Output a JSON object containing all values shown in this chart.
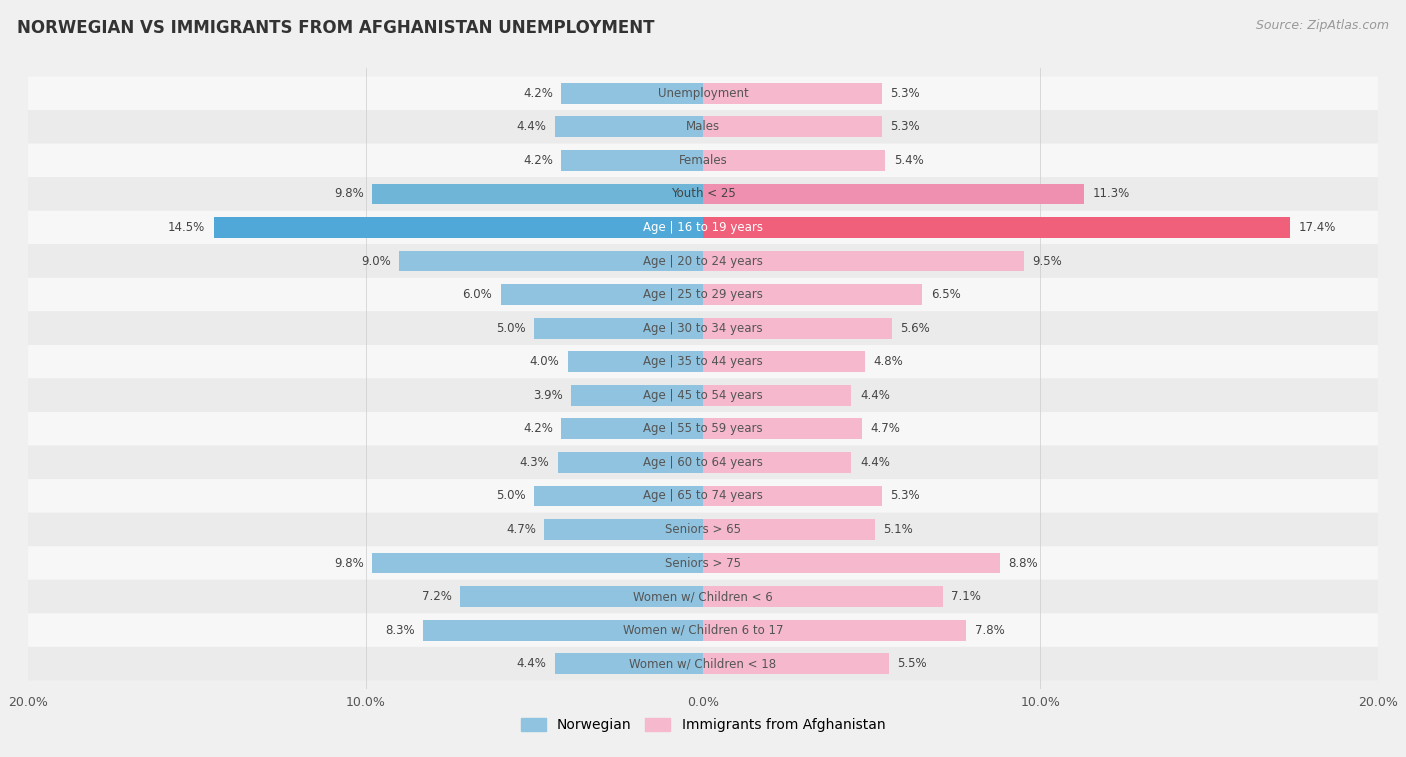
{
  "title": "NORWEGIAN VS IMMIGRANTS FROM AFGHANISTAN UNEMPLOYMENT",
  "source": "Source: ZipAtlas.com",
  "categories": [
    "Unemployment",
    "Males",
    "Females",
    "Youth < 25",
    "Age | 16 to 19 years",
    "Age | 20 to 24 years",
    "Age | 25 to 29 years",
    "Age | 30 to 34 years",
    "Age | 35 to 44 years",
    "Age | 45 to 54 years",
    "Age | 55 to 59 years",
    "Age | 60 to 64 years",
    "Age | 65 to 74 years",
    "Seniors > 65",
    "Seniors > 75",
    "Women w/ Children < 6",
    "Women w/ Children 6 to 17",
    "Women w/ Children < 18"
  ],
  "norwegian": [
    4.2,
    4.4,
    4.2,
    9.8,
    14.5,
    9.0,
    6.0,
    5.0,
    4.0,
    3.9,
    4.2,
    4.3,
    5.0,
    4.7,
    9.8,
    7.2,
    8.3,
    4.4
  ],
  "immigrants": [
    5.3,
    5.3,
    5.4,
    11.3,
    17.4,
    9.5,
    6.5,
    5.6,
    4.8,
    4.4,
    4.7,
    4.4,
    5.3,
    5.1,
    8.8,
    7.1,
    7.8,
    5.5
  ],
  "norwegian_color": "#8fc3e0",
  "norwegian_color_highlight": "#4fa8d8",
  "immigrant_color": "#f5b8cc",
  "immigrant_color_highlight": "#f0607a",
  "youth_highlight_nor": "#6eb5d8",
  "youth_highlight_imm": "#f090b0",
  "row_bg_light": "#f7f7f7",
  "row_bg_dark": "#ebebeb",
  "background_color": "#f0f0f0",
  "axis_max": 20.0,
  "legend_norwegian": "Norwegian",
  "legend_immigrants": "Immigrants from Afghanistan"
}
